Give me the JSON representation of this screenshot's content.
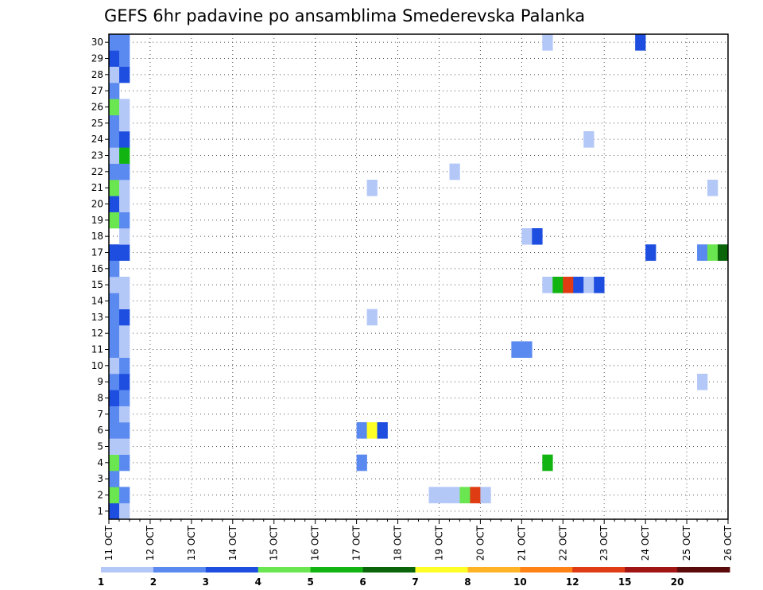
{
  "chart_data": {
    "type": "heatmap",
    "title": "GEFS 6hr padavine po ansamblima Smederevska Palanka",
    "xlabel": "",
    "ylabel": "",
    "x_tick_labels": [
      "11 OCT",
      "12 OCT",
      "13 OCT",
      "14 OCT",
      "15 OCT",
      "16 OCT",
      "17 OCT",
      "18 OCT",
      "19 OCT",
      "20 OCT",
      "21 OCT",
      "22 OCT",
      "23 OCT",
      "24 OCT",
      "25 OCT",
      "26 OCT"
    ],
    "y_tick_labels": [
      "1",
      "2",
      "3",
      "4",
      "5",
      "6",
      "7",
      "8",
      "9",
      "10",
      "11",
      "12",
      "13",
      "14",
      "15",
      "16",
      "17",
      "18",
      "19",
      "20",
      "21",
      "22",
      "23",
      "24",
      "25",
      "26",
      "27",
      "28",
      "29",
      "30"
    ],
    "x_range_days": [
      0,
      15
    ],
    "y_range_members": [
      0.5,
      30.5
    ],
    "grid": true,
    "legend": "colorbar-bottom",
    "colorbar_labels": [
      "1",
      "2",
      "3",
      "4",
      "5",
      "6",
      "7",
      "8",
      "10",
      "12",
      "15",
      "20"
    ],
    "colorbar_colors": [
      "#b4c8f8",
      "#5a8af0",
      "#1e4ee0",
      "#6ae650",
      "#12b412",
      "#0a640a",
      "#ffff28",
      "#ffb428",
      "#ff8214",
      "#e03c14",
      "#a01414",
      "#5a0a0a"
    ],
    "bins": [
      1,
      2,
      3,
      4,
      5,
      6,
      7,
      8,
      10,
      12,
      15,
      20,
      25
    ],
    "cells": [
      {
        "t": 0.125,
        "m": 1,
        "v": 3.5
      },
      {
        "t": 0.375,
        "m": 1,
        "v": 1.5
      },
      {
        "t": 0.125,
        "m": 2,
        "v": 4.5
      },
      {
        "t": 0.375,
        "m": 2,
        "v": 2.5
      },
      {
        "t": 0.125,
        "m": 3,
        "v": 2.5
      },
      {
        "t": 0.125,
        "m": 4,
        "v": 4.5
      },
      {
        "t": 0.375,
        "m": 4,
        "v": 2.5
      },
      {
        "t": 0.125,
        "m": 5,
        "v": 1.5
      },
      {
        "t": 0.375,
        "m": 5,
        "v": 1.5
      },
      {
        "t": 0.125,
        "m": 6,
        "v": 2.5
      },
      {
        "t": 0.375,
        "m": 6,
        "v": 2.5
      },
      {
        "t": 0.125,
        "m": 7,
        "v": 2.5
      },
      {
        "t": 0.375,
        "m": 7,
        "v": 1.5
      },
      {
        "t": 0.125,
        "m": 8,
        "v": 3.5
      },
      {
        "t": 0.375,
        "m": 8,
        "v": 2.5
      },
      {
        "t": 0.125,
        "m": 9,
        "v": 2.5
      },
      {
        "t": 0.375,
        "m": 9,
        "v": 3.5
      },
      {
        "t": 0.125,
        "m": 10,
        "v": 1.5
      },
      {
        "t": 0.375,
        "m": 10,
        "v": 2.5
      },
      {
        "t": 0.125,
        "m": 11,
        "v": 2.5
      },
      {
        "t": 0.375,
        "m": 11,
        "v": 1.5
      },
      {
        "t": 0.125,
        "m": 12,
        "v": 2.5
      },
      {
        "t": 0.375,
        "m": 12,
        "v": 1.5
      },
      {
        "t": 0.125,
        "m": 13,
        "v": 2.5
      },
      {
        "t": 0.375,
        "m": 13,
        "v": 3.5
      },
      {
        "t": 0.125,
        "m": 14,
        "v": 2.5
      },
      {
        "t": 0.375,
        "m": 14,
        "v": 1.5
      },
      {
        "t": 0.125,
        "m": 15,
        "v": 1.5
      },
      {
        "t": 0.375,
        "m": 15,
        "v": 1.5
      },
      {
        "t": 0.125,
        "m": 16,
        "v": 2.5
      },
      {
        "t": 0.125,
        "m": 17,
        "v": 3.5
      },
      {
        "t": 0.375,
        "m": 17,
        "v": 3.5
      },
      {
        "t": 0.375,
        "m": 18,
        "v": 1.5
      },
      {
        "t": 0.125,
        "m": 19,
        "v": 4.5
      },
      {
        "t": 0.375,
        "m": 19,
        "v": 2.5
      },
      {
        "t": 0.125,
        "m": 20,
        "v": 3.5
      },
      {
        "t": 0.375,
        "m": 20,
        "v": 1.5
      },
      {
        "t": 0.125,
        "m": 21,
        "v": 4.5
      },
      {
        "t": 0.375,
        "m": 21,
        "v": 1.5
      },
      {
        "t": 0.125,
        "m": 22,
        "v": 2.5
      },
      {
        "t": 0.375,
        "m": 22,
        "v": 2.5
      },
      {
        "t": 0.125,
        "m": 23,
        "v": 1.5
      },
      {
        "t": 0.375,
        "m": 23,
        "v": 5.5
      },
      {
        "t": 0.125,
        "m": 24,
        "v": 2.5
      },
      {
        "t": 0.375,
        "m": 24,
        "v": 3.5
      },
      {
        "t": 0.125,
        "m": 25,
        "v": 2.5
      },
      {
        "t": 0.375,
        "m": 25,
        "v": 1.5
      },
      {
        "t": 0.125,
        "m": 26,
        "v": 4.5
      },
      {
        "t": 0.375,
        "m": 26,
        "v": 1.5
      },
      {
        "t": 0.125,
        "m": 27,
        "v": 2.5
      },
      {
        "t": 0.125,
        "m": 28,
        "v": 1.5
      },
      {
        "t": 0.375,
        "m": 28,
        "v": 3.5
      },
      {
        "t": 0.125,
        "m": 29,
        "v": 3.5
      },
      {
        "t": 0.375,
        "m": 29,
        "v": 2.5
      },
      {
        "t": 0.125,
        "m": 30,
        "v": 2.5
      },
      {
        "t": 0.375,
        "m": 30,
        "v": 2.5
      },
      {
        "t": 6.125,
        "m": 6,
        "v": 2.5
      },
      {
        "t": 6.375,
        "m": 6,
        "v": 7.5
      },
      {
        "t": 6.625,
        "m": 6,
        "v": 3.5
      },
      {
        "t": 6.125,
        "m": 4,
        "v": 2.5
      },
      {
        "t": 6.375,
        "m": 13,
        "v": 1.5
      },
      {
        "t": 6.375,
        "m": 21,
        "v": 1.5
      },
      {
        "t": 7.875,
        "m": 2,
        "v": 1.5
      },
      {
        "t": 8.125,
        "m": 2,
        "v": 1.5
      },
      {
        "t": 8.375,
        "m": 2,
        "v": 1.5
      },
      {
        "t": 8.625,
        "m": 2,
        "v": 4.5
      },
      {
        "t": 8.875,
        "m": 2,
        "v": 13
      },
      {
        "t": 9.125,
        "m": 2,
        "v": 1.5
      },
      {
        "t": 8.375,
        "m": 22,
        "v": 1.5
      },
      {
        "t": 9.875,
        "m": 11,
        "v": 2.5
      },
      {
        "t": 10.125,
        "m": 11,
        "v": 2.5
      },
      {
        "t": 10.125,
        "m": 18,
        "v": 1.5
      },
      {
        "t": 10.375,
        "m": 18,
        "v": 3.5
      },
      {
        "t": 10.625,
        "m": 4,
        "v": 5.5
      },
      {
        "t": 10.625,
        "m": 15,
        "v": 1.5
      },
      {
        "t": 10.875,
        "m": 15,
        "v": 5.5
      },
      {
        "t": 11.125,
        "m": 15,
        "v": 13
      },
      {
        "t": 11.375,
        "m": 15,
        "v": 3.5
      },
      {
        "t": 11.625,
        "m": 15,
        "v": 1.5
      },
      {
        "t": 11.875,
        "m": 15,
        "v": 3.5
      },
      {
        "t": 10.625,
        "m": 30,
        "v": 1.5
      },
      {
        "t": 11.625,
        "m": 24,
        "v": 1.5
      },
      {
        "t": 12.875,
        "m": 30,
        "v": 3.5
      },
      {
        "t": 13.125,
        "m": 17,
        "v": 3.5
      },
      {
        "t": 14.375,
        "m": 9,
        "v": 1.5
      },
      {
        "t": 14.375,
        "m": 17,
        "v": 2.5
      },
      {
        "t": 14.625,
        "m": 17,
        "v": 4.5
      },
      {
        "t": 14.875,
        "m": 17,
        "v": 6.5
      },
      {
        "t": 14.625,
        "m": 21,
        "v": 1.5
      }
    ]
  }
}
